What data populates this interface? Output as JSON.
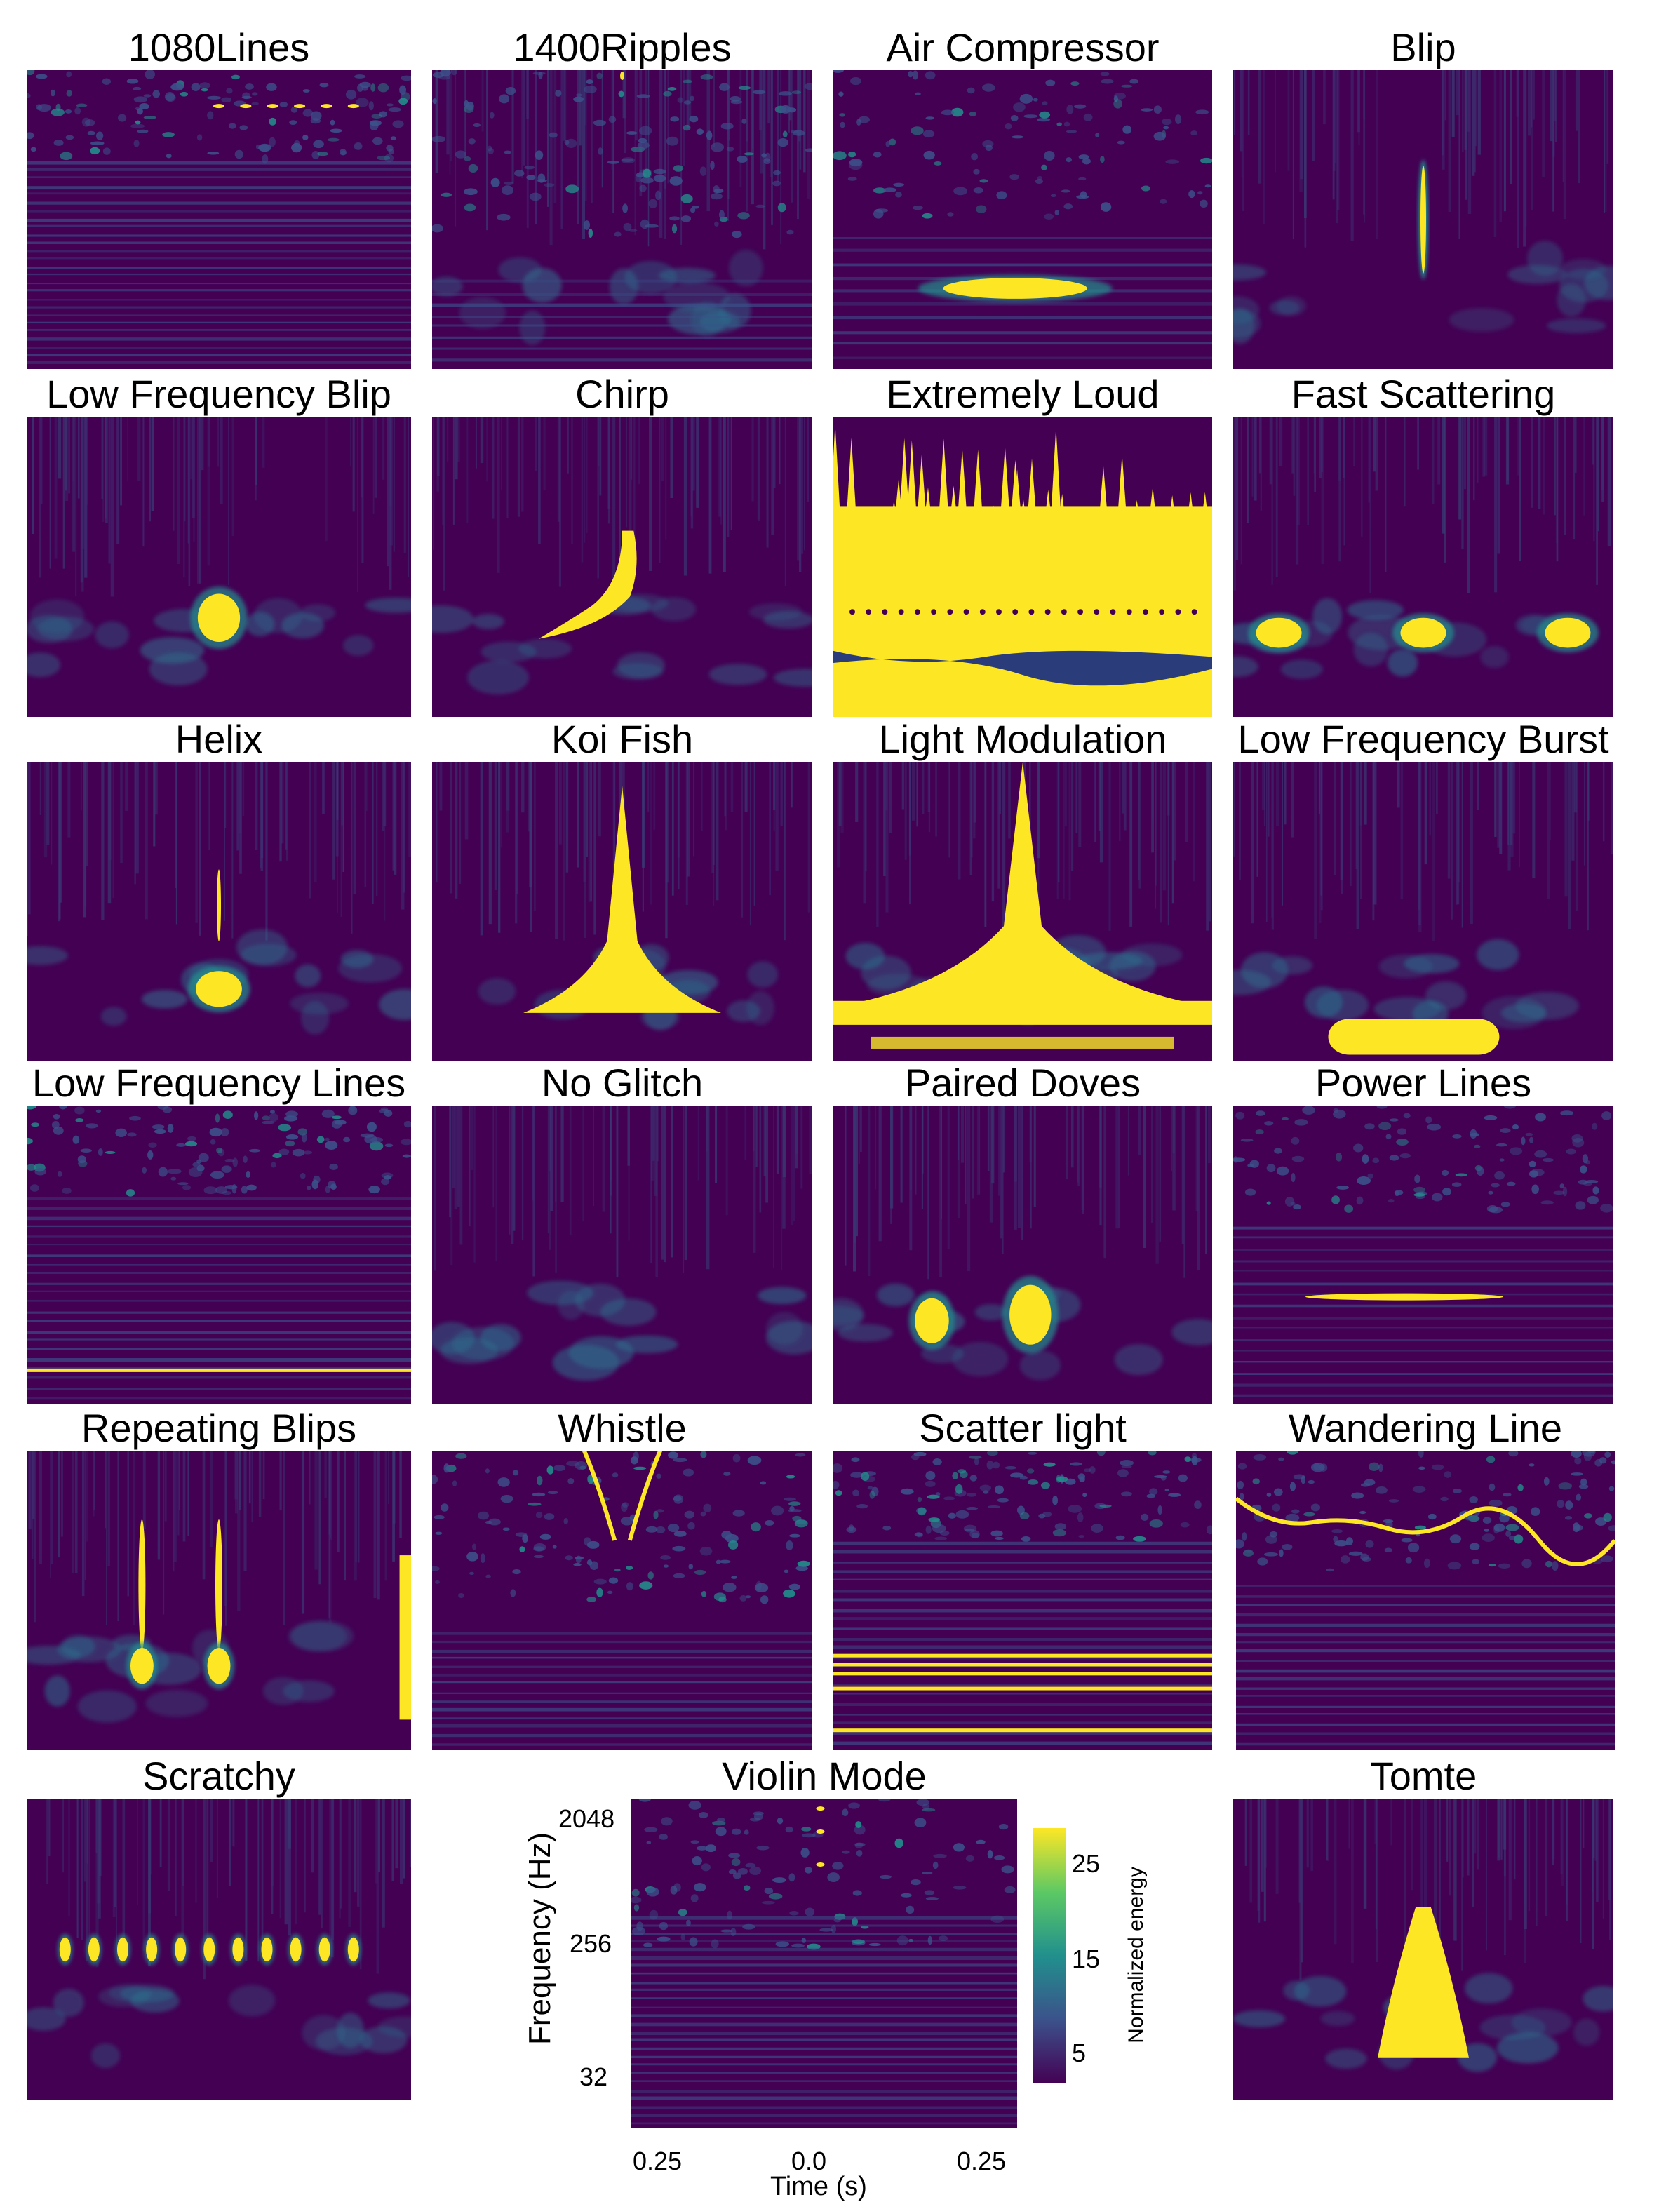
{
  "chart_data": [
    {
      "type": "heatmap",
      "title": "1080Lines",
      "feature": "lines-high"
    },
    {
      "type": "heatmap",
      "title": "1400Ripples",
      "feature": "ripples"
    },
    {
      "type": "heatmap",
      "title": "Air Compressor",
      "feature": "air-compressor"
    },
    {
      "type": "heatmap",
      "title": "Blip",
      "feature": "blip"
    },
    {
      "type": "heatmap",
      "title": "Low Frequency Blip",
      "feature": "lf-blip"
    },
    {
      "type": "heatmap",
      "title": "Chirp",
      "feature": "chirp"
    },
    {
      "type": "heatmap",
      "title": "Extremely Loud",
      "feature": "extremely-loud"
    },
    {
      "type": "heatmap",
      "title": "Fast Scattering",
      "feature": "fast-scattering"
    },
    {
      "type": "heatmap",
      "title": "Helix",
      "feature": "helix"
    },
    {
      "type": "heatmap",
      "title": "Koi Fish",
      "feature": "koi-fish"
    },
    {
      "type": "heatmap",
      "title": "Light Modulation",
      "feature": "light-modulation"
    },
    {
      "type": "heatmap",
      "title": "Low Frequency Burst",
      "feature": "lf-burst"
    },
    {
      "type": "heatmap",
      "title": "Low Frequency Lines",
      "feature": "lf-lines"
    },
    {
      "type": "heatmap",
      "title": "No Glitch",
      "feature": "none"
    },
    {
      "type": "heatmap",
      "title": "Paired Doves",
      "feature": "paired-doves"
    },
    {
      "type": "heatmap",
      "title": "Power Lines",
      "feature": "power-lines"
    },
    {
      "type": "heatmap",
      "title": "Repeating Blips",
      "feature": "repeating-blips"
    },
    {
      "type": "heatmap",
      "title": "Whistle",
      "feature": "whistle"
    },
    {
      "type": "heatmap",
      "title": "Scatter light",
      "feature": "scatter-light"
    },
    {
      "type": "heatmap",
      "title": "Wandering Line",
      "feature": "wandering-line"
    },
    {
      "type": "heatmap",
      "title": "Scratchy",
      "feature": "scratchy"
    },
    {
      "type": "heatmap",
      "title": "Violin Mode",
      "feature": "violin-mode",
      "xlabel": "Time (s)",
      "ylabel": "Frequency (Hz)",
      "xticks": [
        "0.25",
        "0.0",
        "0.25"
      ],
      "yticks": [
        "2048",
        "256",
        "32"
      ]
    },
    {
      "type": "heatmap",
      "title": "Tomte",
      "feature": "tomte"
    }
  ],
  "colorbar": {
    "label": "Normalized energy",
    "ticks": [
      "25",
      "15",
      "5"
    ],
    "range": [
      0,
      27
    ]
  },
  "colors": {
    "background": "#440154",
    "mid": "#21908d",
    "high": "#fde725"
  }
}
